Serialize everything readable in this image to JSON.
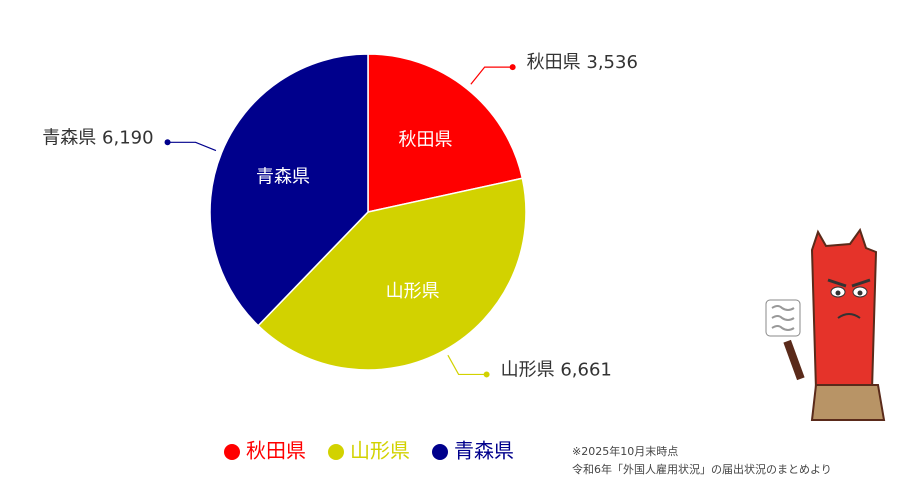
{
  "chart_data": {
    "type": "pie",
    "categories": [
      "秋田県",
      "山形県",
      "青森県"
    ],
    "values": [
      3536,
      6661,
      6190
    ],
    "value_labels": [
      "3,536",
      "6,661",
      "6,190"
    ],
    "colors": [
      "#ff0000",
      "#d2d200",
      "#00008c"
    ],
    "legend": "bottom",
    "notes": [
      "※2025年10月末時点",
      "令和6年「外国人雇用状況」の届出状況のまとめより"
    ]
  }
}
